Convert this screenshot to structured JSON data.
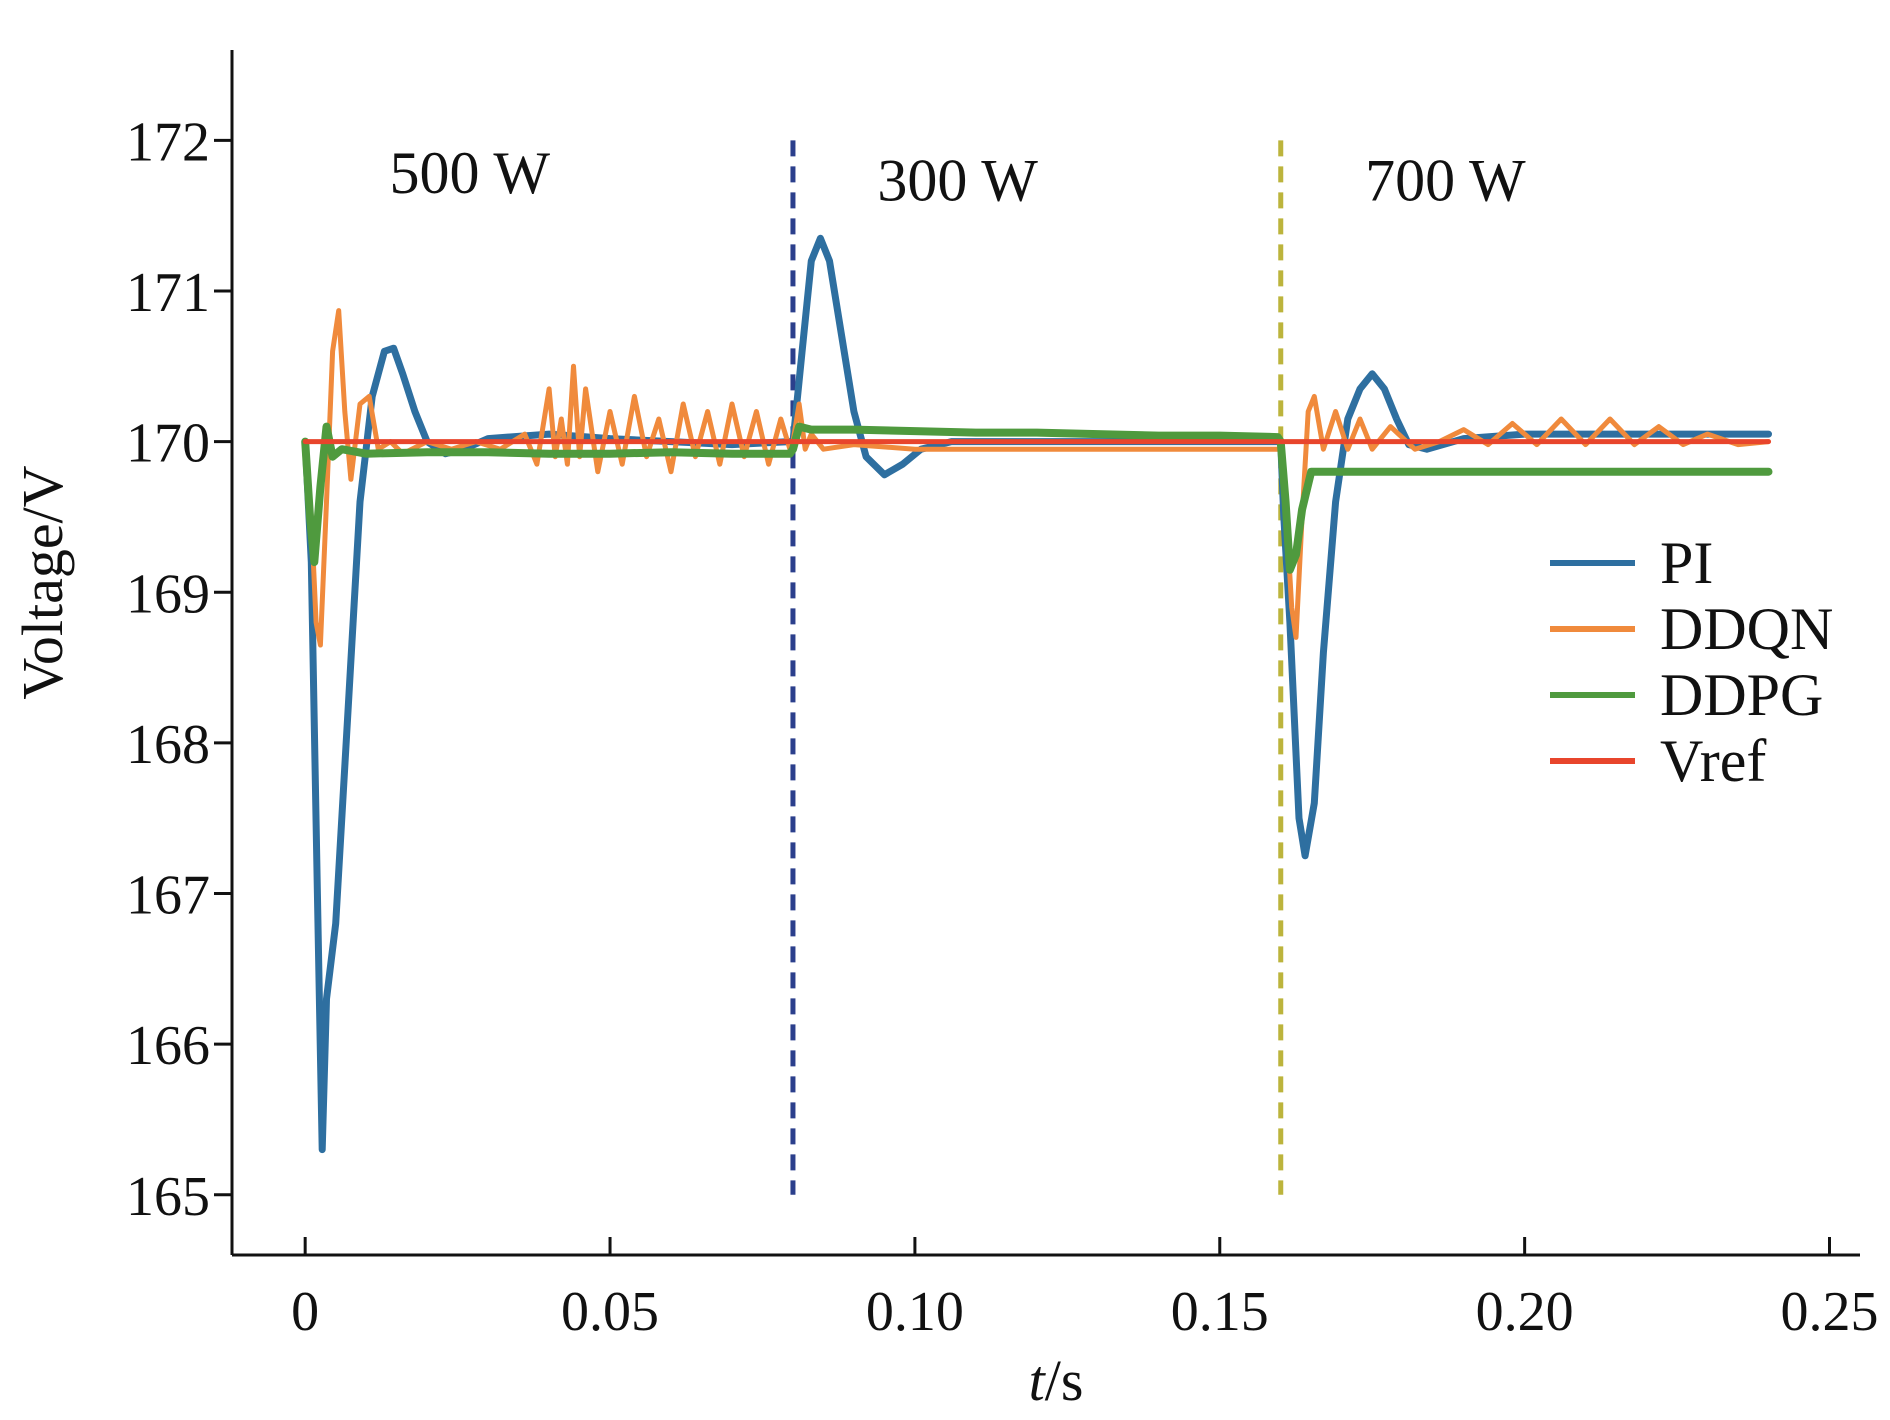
{
  "chart_data": {
    "type": "line",
    "title": "",
    "xlabel_italic": "t",
    "xlabel_suffix": "/s",
    "ylabel": "Voltage/V",
    "xlim": [
      -0.012,
      0.255
    ],
    "ylim": [
      164.6,
      172.6
    ],
    "x_ticks": [
      0,
      0.05,
      0.1,
      0.15,
      0.2,
      0.25
    ],
    "x_tick_labels": [
      "0",
      "0.05",
      "0.10",
      "0.15",
      "0.20",
      "0.25"
    ],
    "y_ticks": [
      165,
      166,
      167,
      168,
      169,
      170,
      171,
      172
    ],
    "y_tick_labels": [
      "165",
      "166",
      "167",
      "168",
      "169",
      "170",
      "171",
      "172"
    ],
    "grid": false,
    "legend_position": "right",
    "load_changes": [
      {
        "x": 0.08,
        "color": "#2b3f8c"
      },
      {
        "x": 0.16,
        "color": "#bcb43c"
      }
    ],
    "annotations": [
      {
        "text": "500 W",
        "x": 0.027,
        "y": 171.65
      },
      {
        "text": "300 W",
        "x": 0.107,
        "y": 171.6
      },
      {
        "text": "700 W",
        "x": 0.187,
        "y": 171.6
      }
    ],
    "series": [
      {
        "name": "PI",
        "color": "#2e6fa0",
        "points": [
          [
            0,
            170.0
          ],
          [
            0.001,
            169.2
          ],
          [
            0.002,
            167.0
          ],
          [
            0.0028,
            165.3
          ],
          [
            0.0035,
            166.3
          ],
          [
            0.005,
            166.8
          ],
          [
            0.007,
            168.2
          ],
          [
            0.009,
            169.6
          ],
          [
            0.011,
            170.3
          ],
          [
            0.013,
            170.6
          ],
          [
            0.0145,
            170.62
          ],
          [
            0.016,
            170.45
          ],
          [
            0.018,
            170.2
          ],
          [
            0.02,
            170.0
          ],
          [
            0.023,
            169.92
          ],
          [
            0.026,
            169.95
          ],
          [
            0.03,
            170.02
          ],
          [
            0.04,
            170.05
          ],
          [
            0.05,
            170.02
          ],
          [
            0.06,
            170.0
          ],
          [
            0.07,
            169.98
          ],
          [
            0.0795,
            170.0
          ],
          [
            0.08,
            170.0
          ],
          [
            0.0815,
            170.6
          ],
          [
            0.083,
            171.2
          ],
          [
            0.0845,
            171.35
          ],
          [
            0.086,
            171.2
          ],
          [
            0.088,
            170.7
          ],
          [
            0.09,
            170.2
          ],
          [
            0.092,
            169.9
          ],
          [
            0.095,
            169.78
          ],
          [
            0.098,
            169.85
          ],
          [
            0.101,
            169.95
          ],
          [
            0.106,
            170.0
          ],
          [
            0.12,
            170.0
          ],
          [
            0.14,
            170.0
          ],
          [
            0.1595,
            170.0
          ],
          [
            0.16,
            170.0
          ],
          [
            0.1605,
            169.5
          ],
          [
            0.1615,
            168.8
          ],
          [
            0.163,
            167.5
          ],
          [
            0.164,
            167.25
          ],
          [
            0.1655,
            167.6
          ],
          [
            0.167,
            168.6
          ],
          [
            0.169,
            169.6
          ],
          [
            0.171,
            170.15
          ],
          [
            0.173,
            170.35
          ],
          [
            0.175,
            170.45
          ],
          [
            0.177,
            170.35
          ],
          [
            0.179,
            170.15
          ],
          [
            0.181,
            169.98
          ],
          [
            0.184,
            169.95
          ],
          [
            0.19,
            170.02
          ],
          [
            0.2,
            170.05
          ],
          [
            0.22,
            170.05
          ],
          [
            0.24,
            170.05
          ]
        ]
      },
      {
        "name": "DDQN",
        "color": "#f08a3c",
        "points": [
          [
            0,
            170.0
          ],
          [
            0.001,
            169.5
          ],
          [
            0.0018,
            168.8
          ],
          [
            0.0025,
            168.65
          ],
          [
            0.0035,
            169.6
          ],
          [
            0.0045,
            170.6
          ],
          [
            0.0055,
            170.87
          ],
          [
            0.0065,
            170.2
          ],
          [
            0.0075,
            169.75
          ],
          [
            0.009,
            170.25
          ],
          [
            0.0105,
            170.3
          ],
          [
            0.012,
            169.95
          ],
          [
            0.014,
            170.0
          ],
          [
            0.016,
            169.92
          ],
          [
            0.02,
            170.0
          ],
          [
            0.024,
            169.95
          ],
          [
            0.028,
            170.0
          ],
          [
            0.032,
            169.95
          ],
          [
            0.036,
            170.05
          ],
          [
            0.038,
            169.85
          ],
          [
            0.04,
            170.35
          ],
          [
            0.041,
            169.9
          ],
          [
            0.042,
            170.15
          ],
          [
            0.043,
            169.85
          ],
          [
            0.044,
            170.5
          ],
          [
            0.045,
            169.9
          ],
          [
            0.046,
            170.35
          ],
          [
            0.048,
            169.8
          ],
          [
            0.05,
            170.2
          ],
          [
            0.052,
            169.85
          ],
          [
            0.054,
            170.3
          ],
          [
            0.056,
            169.9
          ],
          [
            0.058,
            170.15
          ],
          [
            0.06,
            169.8
          ],
          [
            0.062,
            170.25
          ],
          [
            0.064,
            169.9
          ],
          [
            0.066,
            170.2
          ],
          [
            0.068,
            169.85
          ],
          [
            0.07,
            170.25
          ],
          [
            0.072,
            169.9
          ],
          [
            0.074,
            170.2
          ],
          [
            0.076,
            169.85
          ],
          [
            0.078,
            170.15
          ],
          [
            0.0795,
            169.95
          ],
          [
            0.08,
            170.0
          ],
          [
            0.081,
            170.25
          ],
          [
            0.082,
            169.95
          ],
          [
            0.083,
            170.05
          ],
          [
            0.085,
            169.95
          ],
          [
            0.09,
            169.98
          ],
          [
            0.1,
            169.95
          ],
          [
            0.12,
            169.95
          ],
          [
            0.14,
            169.95
          ],
          [
            0.1595,
            169.95
          ],
          [
            0.16,
            169.95
          ],
          [
            0.1608,
            169.6
          ],
          [
            0.1618,
            168.9
          ],
          [
            0.1625,
            168.7
          ],
          [
            0.1635,
            169.5
          ],
          [
            0.1645,
            170.2
          ],
          [
            0.1655,
            170.3
          ],
          [
            0.167,
            169.95
          ],
          [
            0.169,
            170.2
          ],
          [
            0.171,
            169.95
          ],
          [
            0.173,
            170.15
          ],
          [
            0.175,
            169.95
          ],
          [
            0.178,
            170.1
          ],
          [
            0.182,
            169.95
          ],
          [
            0.186,
            170.0
          ],
          [
            0.19,
            170.08
          ],
          [
            0.194,
            169.98
          ],
          [
            0.198,
            170.12
          ],
          [
            0.202,
            169.98
          ],
          [
            0.206,
            170.15
          ],
          [
            0.21,
            169.98
          ],
          [
            0.214,
            170.15
          ],
          [
            0.218,
            169.98
          ],
          [
            0.222,
            170.1
          ],
          [
            0.226,
            169.98
          ],
          [
            0.23,
            170.05
          ],
          [
            0.235,
            169.98
          ],
          [
            0.24,
            170.0
          ]
        ]
      },
      {
        "name": "DDPG",
        "color": "#4f9a3e",
        "points": [
          [
            0,
            170.0
          ],
          [
            0.0008,
            169.5
          ],
          [
            0.0015,
            169.2
          ],
          [
            0.0025,
            169.7
          ],
          [
            0.0035,
            170.1
          ],
          [
            0.0045,
            169.9
          ],
          [
            0.006,
            169.95
          ],
          [
            0.01,
            169.92
          ],
          [
            0.02,
            169.93
          ],
          [
            0.03,
            169.93
          ],
          [
            0.04,
            169.92
          ],
          [
            0.05,
            169.92
          ],
          [
            0.06,
            169.93
          ],
          [
            0.07,
            169.92
          ],
          [
            0.0795,
            169.92
          ],
          [
            0.08,
            169.95
          ],
          [
            0.081,
            170.1
          ],
          [
            0.083,
            170.08
          ],
          [
            0.09,
            170.08
          ],
          [
            0.1,
            170.07
          ],
          [
            0.11,
            170.06
          ],
          [
            0.12,
            170.06
          ],
          [
            0.13,
            170.05
          ],
          [
            0.14,
            170.04
          ],
          [
            0.15,
            170.04
          ],
          [
            0.1595,
            170.03
          ],
          [
            0.16,
            170.0
          ],
          [
            0.1608,
            169.6
          ],
          [
            0.1615,
            169.15
          ],
          [
            0.1625,
            169.25
          ],
          [
            0.1635,
            169.55
          ],
          [
            0.165,
            169.8
          ],
          [
            0.168,
            169.8
          ],
          [
            0.175,
            169.8
          ],
          [
            0.19,
            169.8
          ],
          [
            0.21,
            169.8
          ],
          [
            0.23,
            169.8
          ],
          [
            0.24,
            169.8
          ]
        ]
      },
      {
        "name": "Vref",
        "color": "#e8452c",
        "points": [
          [
            0,
            170.0
          ],
          [
            0.24,
            170.0
          ]
        ]
      }
    ]
  }
}
